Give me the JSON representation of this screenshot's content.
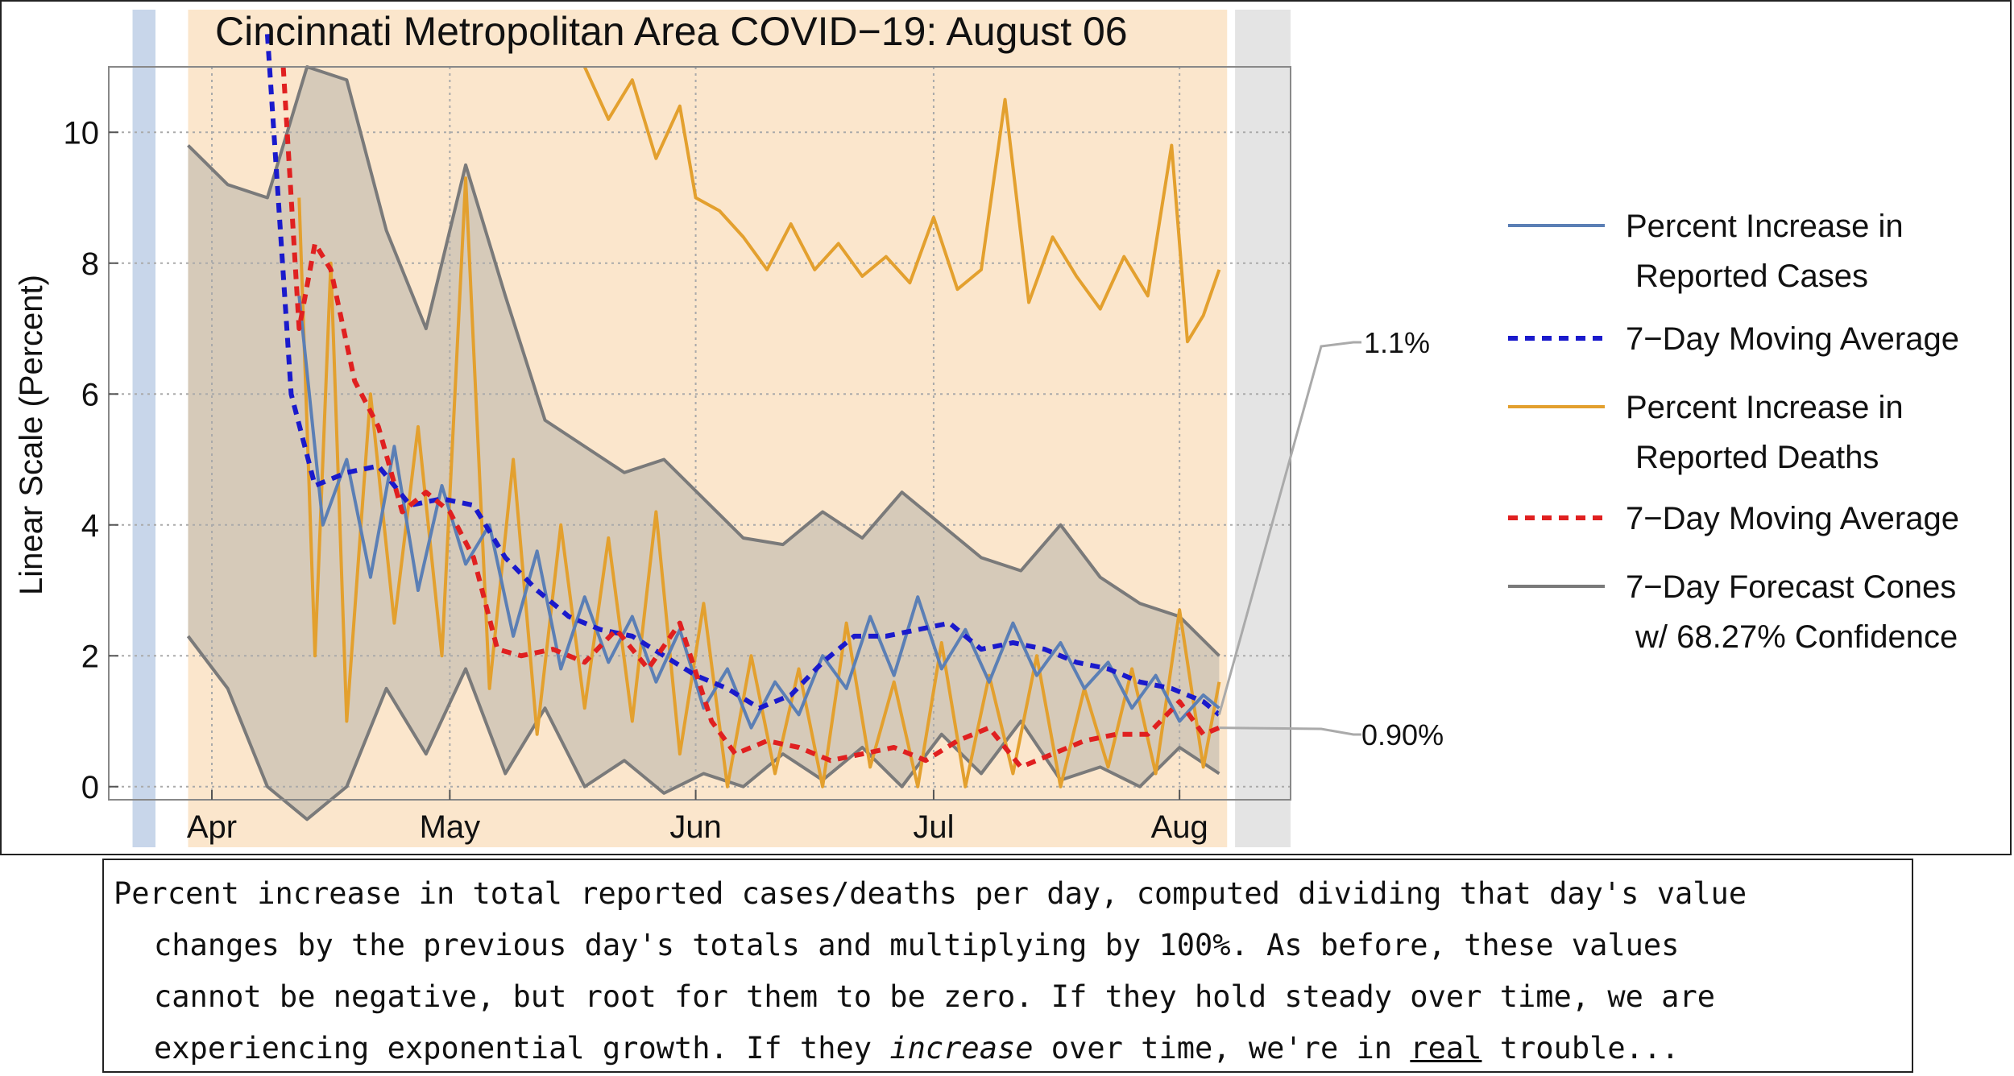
{
  "chart_data": {
    "type": "line",
    "title": "Cincinnati Metropolitan Area COVID−19: August 06",
    "ylabel": "Linear Scale (Percent)",
    "xlabel": "",
    "ylim": [
      -0.2,
      11
    ],
    "y_ticks": [
      0,
      2,
      4,
      6,
      8,
      10
    ],
    "x_ticks": [
      {
        "label": "Apr",
        "date": "2020-04-01"
      },
      {
        "label": "May",
        "date": "2020-05-01"
      },
      {
        "label": "Jun",
        "date": "2020-06-01"
      },
      {
        "label": "Jul",
        "date": "2020-07-01"
      },
      {
        "label": "Aug",
        "date": "2020-08-01"
      }
    ],
    "grid": true,
    "legend_position": "right",
    "legend": [
      {
        "label_lines": [
          "Percent Increase in",
          "Reported Cases"
        ],
        "color": "#5b7fb5",
        "dashed": false
      },
      {
        "label_lines": [
          "7−Day Moving Average"
        ],
        "color": "#1a1acc",
        "dashed": true
      },
      {
        "label_lines": [
          "Percent Increase in",
          "Reported Deaths"
        ],
        "color": "#e3a02e",
        "dashed": false
      },
      {
        "label_lines": [
          "7−Day Moving Average"
        ],
        "color": "#e02020",
        "dashed": true
      },
      {
        "label_lines": [
          "7−Day Forecast Cones",
          "w/ 68.27% Confidence"
        ],
        "color": "#7a7a7a",
        "dashed": false
      }
    ],
    "annotations": [
      {
        "text": "1.1%",
        "color": "#1a1acc",
        "series": "cases_avg"
      },
      {
        "text": "0.90%",
        "color": "#cc1a1a",
        "series": "deaths_avg"
      }
    ],
    "series": [
      {
        "id": "cases_avg",
        "color": "#1a1acc",
        "dashed": true,
        "x": [
          "2020-04-08",
          "2020-04-11",
          "2020-04-14",
          "2020-04-18",
          "2020-04-22",
          "2020-04-26",
          "2020-04-30",
          "2020-05-04",
          "2020-05-08",
          "2020-05-12",
          "2020-05-16",
          "2020-05-20",
          "2020-05-24",
          "2020-05-28",
          "2020-06-01",
          "2020-06-05",
          "2020-06-09",
          "2020-06-13",
          "2020-06-17",
          "2020-06-21",
          "2020-06-25",
          "2020-06-29",
          "2020-07-03",
          "2020-07-07",
          "2020-07-11",
          "2020-07-15",
          "2020-07-19",
          "2020-07-23",
          "2020-07-27",
          "2020-07-31",
          "2020-08-04",
          "2020-08-06"
        ],
        "y": [
          11.5,
          6.0,
          4.6,
          4.8,
          4.9,
          4.3,
          4.4,
          4.3,
          3.5,
          3.0,
          2.6,
          2.4,
          2.3,
          2.0,
          1.7,
          1.5,
          1.2,
          1.4,
          1.9,
          2.3,
          2.3,
          2.4,
          2.5,
          2.1,
          2.2,
          2.1,
          1.9,
          1.8,
          1.6,
          1.5,
          1.3,
          1.1
        ]
      },
      {
        "id": "deaths_avg",
        "color": "#e02020",
        "dashed": true,
        "x": [
          "2020-04-10",
          "2020-04-12",
          "2020-04-14",
          "2020-04-16",
          "2020-04-19",
          "2020-04-22",
          "2020-04-25",
          "2020-04-28",
          "2020-05-01",
          "2020-05-04",
          "2020-05-07",
          "2020-05-10",
          "2020-05-14",
          "2020-05-18",
          "2020-05-22",
          "2020-05-26",
          "2020-05-30",
          "2020-06-03",
          "2020-06-06",
          "2020-06-10",
          "2020-06-14",
          "2020-06-18",
          "2020-06-22",
          "2020-06-26",
          "2020-06-30",
          "2020-07-04",
          "2020-07-08",
          "2020-07-12",
          "2020-07-16",
          "2020-07-20",
          "2020-07-24",
          "2020-07-28",
          "2020-08-01",
          "2020-08-04",
          "2020-08-06"
        ],
        "y": [
          11.0,
          7.0,
          8.3,
          7.9,
          6.2,
          5.5,
          4.2,
          4.5,
          4.2,
          3.5,
          2.1,
          2.0,
          2.1,
          1.9,
          2.4,
          1.8,
          2.5,
          1.0,
          0.5,
          0.7,
          0.6,
          0.4,
          0.5,
          0.6,
          0.4,
          0.7,
          0.9,
          0.3,
          0.5,
          0.7,
          0.8,
          0.8,
          1.3,
          0.8,
          0.9
        ]
      },
      {
        "id": "cases_daily",
        "color": "#5b7fb5",
        "dashed": false,
        "x": [
          "2020-04-12",
          "2020-04-15",
          "2020-04-18",
          "2020-04-21",
          "2020-04-24",
          "2020-04-27",
          "2020-04-30",
          "2020-05-03",
          "2020-05-06",
          "2020-05-09",
          "2020-05-12",
          "2020-05-15",
          "2020-05-18",
          "2020-05-21",
          "2020-05-24",
          "2020-05-27",
          "2020-05-30",
          "2020-06-02",
          "2020-06-05",
          "2020-06-08",
          "2020-06-11",
          "2020-06-14",
          "2020-06-17",
          "2020-06-20",
          "2020-06-23",
          "2020-06-26",
          "2020-06-29",
          "2020-07-02",
          "2020-07-05",
          "2020-07-08",
          "2020-07-11",
          "2020-07-14",
          "2020-07-17",
          "2020-07-20",
          "2020-07-23",
          "2020-07-26",
          "2020-07-29",
          "2020-08-01",
          "2020-08-04",
          "2020-08-06"
        ],
        "y": [
          7.5,
          4.0,
          5.0,
          3.2,
          5.2,
          3.0,
          4.6,
          3.4,
          4.0,
          2.3,
          3.6,
          1.8,
          2.9,
          1.9,
          2.6,
          1.6,
          2.4,
          1.2,
          1.8,
          0.9,
          1.6,
          1.1,
          2.0,
          1.5,
          2.6,
          1.7,
          2.9,
          1.8,
          2.4,
          1.6,
          2.5,
          1.7,
          2.2,
          1.5,
          1.9,
          1.2,
          1.7,
          1.0,
          1.4,
          1.2
        ]
      },
      {
        "id": "deaths_daily",
        "color": "#e3a02e",
        "dashed": false,
        "x": [
          "2020-04-12",
          "2020-04-14",
          "2020-04-16",
          "2020-04-18",
          "2020-04-21",
          "2020-04-24",
          "2020-04-27",
          "2020-04-30",
          "2020-05-03",
          "2020-05-06",
          "2020-05-09",
          "2020-05-12",
          "2020-05-15",
          "2020-05-18",
          "2020-05-21",
          "2020-05-24",
          "2020-05-27",
          "2020-05-30",
          "2020-06-02",
          "2020-06-05",
          "2020-06-08",
          "2020-06-11",
          "2020-06-14",
          "2020-06-17",
          "2020-06-20",
          "2020-06-23",
          "2020-06-26",
          "2020-06-29",
          "2020-07-02",
          "2020-07-05",
          "2020-07-08",
          "2020-07-11",
          "2020-07-14",
          "2020-07-17",
          "2020-07-20",
          "2020-07-23",
          "2020-07-26",
          "2020-07-29",
          "2020-08-01",
          "2020-08-04",
          "2020-08-06"
        ],
        "y": [
          9.0,
          2.0,
          8.0,
          1.0,
          6.0,
          2.5,
          5.5,
          2.0,
          9.3,
          1.5,
          5.0,
          0.8,
          4.0,
          1.2,
          3.8,
          1.0,
          4.2,
          0.5,
          2.8,
          0.0,
          2.0,
          0.2,
          1.8,
          0.0,
          2.5,
          0.3,
          1.6,
          0.0,
          2.2,
          0.0,
          1.7,
          0.2,
          2.0,
          0.0,
          1.5,
          0.3,
          1.8,
          0.2,
          2.7,
          0.3,
          1.6
        ]
      },
      {
        "id": "deaths_upper",
        "color": "#e3a02e",
        "dashed": false,
        "x": [
          "2020-05-18",
          "2020-05-21",
          "2020-05-24",
          "2020-05-27",
          "2020-05-30",
          "2020-06-01",
          "2020-06-04",
          "2020-06-07",
          "2020-06-10",
          "2020-06-13",
          "2020-06-16",
          "2020-06-19",
          "2020-06-22",
          "2020-06-25",
          "2020-06-28",
          "2020-07-01",
          "2020-07-04",
          "2020-07-07",
          "2020-07-10",
          "2020-07-13",
          "2020-07-16",
          "2020-07-19",
          "2020-07-22",
          "2020-07-25",
          "2020-07-28",
          "2020-07-31",
          "2020-08-02",
          "2020-08-04",
          "2020-08-06"
        ],
        "y": [
          11.0,
          10.2,
          10.8,
          9.6,
          10.4,
          9.0,
          8.8,
          8.4,
          7.9,
          8.6,
          7.9,
          8.3,
          7.8,
          8.1,
          7.7,
          8.7,
          7.6,
          7.9,
          10.5,
          7.4,
          8.4,
          7.8,
          7.3,
          8.1,
          7.5,
          9.8,
          6.8,
          7.2,
          7.9
        ]
      },
      {
        "id": "cone_upper",
        "color": "#7a7a7a",
        "dashed": false,
        "x": [
          "2020-03-29",
          "2020-04-03",
          "2020-04-08",
          "2020-04-13",
          "2020-04-18",
          "2020-04-23",
          "2020-04-28",
          "2020-05-03",
          "2020-05-08",
          "2020-05-13",
          "2020-05-18",
          "2020-05-23",
          "2020-05-28",
          "2020-06-02",
          "2020-06-07",
          "2020-06-12",
          "2020-06-17",
          "2020-06-22",
          "2020-06-27",
          "2020-07-02",
          "2020-07-07",
          "2020-07-12",
          "2020-07-17",
          "2020-07-22",
          "2020-07-27",
          "2020-08-01",
          "2020-08-06"
        ],
        "y": [
          9.8,
          9.2,
          9.0,
          11.0,
          10.8,
          8.5,
          7.0,
          9.5,
          7.5,
          5.6,
          5.2,
          4.8,
          5.0,
          4.4,
          3.8,
          3.7,
          4.2,
          3.8,
          4.5,
          4.0,
          3.5,
          3.3,
          4.0,
          3.2,
          2.8,
          2.6,
          2.0
        ]
      },
      {
        "id": "cone_lower",
        "color": "#7a7a7a",
        "dashed": false,
        "x": [
          "2020-03-29",
          "2020-04-03",
          "2020-04-08",
          "2020-04-13",
          "2020-04-18",
          "2020-04-23",
          "2020-04-28",
          "2020-05-03",
          "2020-05-08",
          "2020-05-13",
          "2020-05-18",
          "2020-05-23",
          "2020-05-28",
          "2020-06-02",
          "2020-06-07",
          "2020-06-12",
          "2020-06-17",
          "2020-06-22",
          "2020-06-27",
          "2020-07-02",
          "2020-07-07",
          "2020-07-12",
          "2020-07-17",
          "2020-07-22",
          "2020-07-27",
          "2020-08-01",
          "2020-08-06"
        ],
        "y": [
          2.3,
          1.5,
          0.0,
          -0.5,
          0.0,
          1.5,
          0.5,
          1.8,
          0.2,
          1.2,
          0.0,
          0.4,
          -0.1,
          0.2,
          0.0,
          0.5,
          0.1,
          0.6,
          0.0,
          0.8,
          0.2,
          1.0,
          0.1,
          0.3,
          0.0,
          0.6,
          0.2
        ]
      }
    ]
  },
  "caption": {
    "line1": "Percent increase in total reported cases/deaths per day, computed dividing that day's value",
    "line2": "changes by the previous day's totals and multiplying by 100%. As before, these values",
    "line3": "cannot be negative, but root for them to be zero. If they hold steady over time, we are",
    "line4a": "experiencing exponential growth. If they ",
    "line4_em": "increase",
    "line4b": " over time, we're in ",
    "line4_ul": "real",
    "line4c": " trouble..."
  }
}
